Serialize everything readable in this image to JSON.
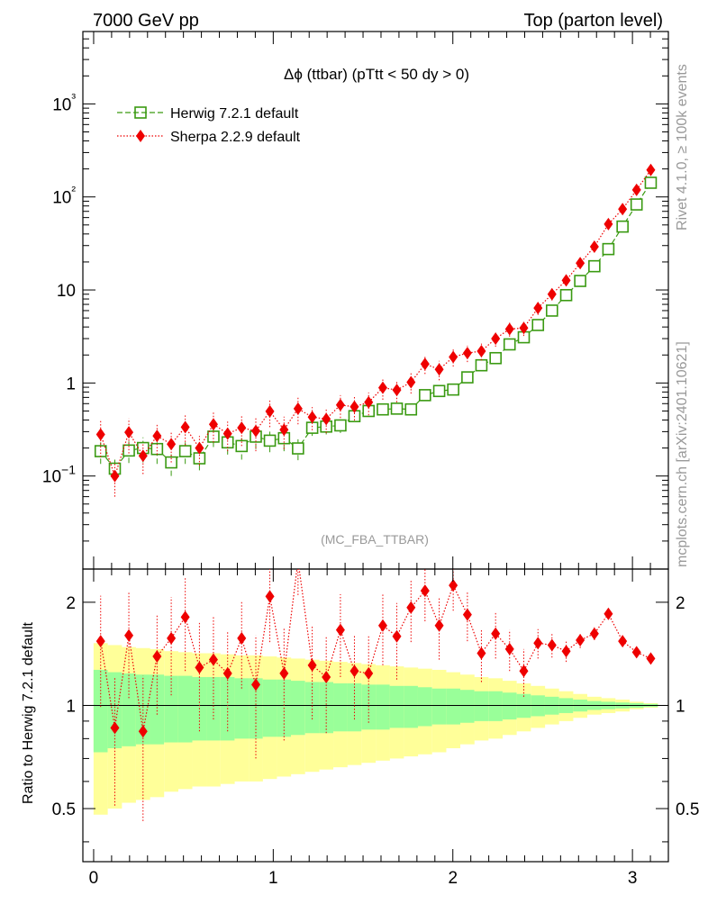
{
  "header": {
    "left": "7000 GeV pp",
    "right": "Top (parton level)"
  },
  "side": {
    "rivet": "Rivet 4.1.0, ≥ 100k events",
    "mcplots": "mcplots.cern.ch [arXiv:2401.10621]"
  },
  "colors": {
    "herwig": "#3a9a12",
    "sherpa": "#ee0000",
    "band_inner": "#99ff99",
    "band_outer": "#ffff99"
  },
  "chart_data": [
    {
      "type": "scatter",
      "title": "Δϕ (ttbar) (pTtt < 50 dy > 0)",
      "annotation": "(MC_FBA_TTBAR)",
      "xlabel": "",
      "ylabel": "",
      "xlim": [
        -0.06,
        3.2
      ],
      "ylim": [
        0.01,
        6000
      ],
      "yscale": "log",
      "yticklabels": [
        "10−1",
        "1",
        "10",
        "10²",
        "10³"
      ],
      "yticks": [
        0.1,
        1,
        10,
        100,
        1000
      ],
      "x": [
        0.039,
        0.118,
        0.196,
        0.275,
        0.353,
        0.432,
        0.51,
        0.589,
        0.667,
        0.746,
        0.824,
        0.903,
        0.981,
        1.06,
        1.138,
        1.217,
        1.295,
        1.374,
        1.452,
        1.531,
        1.61,
        1.688,
        1.767,
        1.845,
        1.924,
        2.002,
        2.081,
        2.159,
        2.238,
        2.316,
        2.395,
        2.474,
        2.552,
        2.631,
        2.709,
        2.788,
        2.866,
        2.945,
        3.023,
        3.102
      ],
      "series": [
        {
          "name": "Herwig 7.2.1 default",
          "marker": "open-square",
          "values": [
            0.185,
            0.12,
            0.188,
            0.2,
            0.195,
            0.14,
            0.185,
            0.155,
            0.265,
            0.23,
            0.21,
            0.265,
            0.24,
            0.255,
            0.198,
            0.33,
            0.34,
            0.35,
            0.44,
            0.5,
            0.52,
            0.53,
            0.52,
            0.74,
            0.82,
            0.85,
            1.15,
            1.55,
            1.85,
            2.6,
            3.1,
            4.2,
            6.0,
            8.8,
            12.5,
            18.0,
            27.5,
            48.0,
            83.0,
            142.0
          ],
          "errors": [
            0.05,
            0.03,
            0.05,
            0.06,
            0.06,
            0.04,
            0.05,
            0.04,
            0.06,
            0.06,
            0.06,
            0.07,
            0.06,
            0.07,
            0.05,
            0.06,
            0.06,
            0.06,
            0.06,
            0.06,
            0.06,
            0.06,
            0.06,
            0.07,
            0.07,
            0.07,
            0.08,
            0.09,
            0.1,
            0.15,
            0.17,
            0.2,
            0.25,
            0.35,
            0.5,
            0.7,
            1.0,
            1.5,
            2.5,
            4.0
          ]
        },
        {
          "name": "Sherpa 2.2.9 default",
          "marker": "filled-diamond",
          "values": [
            0.28,
            0.1,
            0.295,
            0.165,
            0.27,
            0.22,
            0.335,
            0.2,
            0.36,
            0.285,
            0.33,
            0.305,
            0.495,
            0.315,
            0.53,
            0.43,
            0.41,
            0.58,
            0.555,
            0.62,
            0.89,
            0.84,
            1.02,
            1.6,
            1.4,
            1.9,
            2.1,
            2.2,
            3.0,
            3.8,
            3.9,
            6.4,
            9.0,
            12.7,
            19.4,
            29.2,
            51.0,
            74.0,
            119.0,
            195.0
          ],
          "errors": [
            0.12,
            0.04,
            0.12,
            0.06,
            0.1,
            0.08,
            0.12,
            0.07,
            0.13,
            0.1,
            0.12,
            0.12,
            0.16,
            0.12,
            0.17,
            0.12,
            0.12,
            0.16,
            0.16,
            0.17,
            0.23,
            0.22,
            0.25,
            0.35,
            0.33,
            0.4,
            0.42,
            0.45,
            0.55,
            0.65,
            0.7,
            1.0,
            1.3,
            1.7,
            2.4,
            3.4,
            5.5,
            7.5,
            11.0,
            17.0
          ]
        }
      ]
    },
    {
      "type": "scatter",
      "title": "",
      "xlabel": "",
      "ylabel": "Ratio to Herwig 7.2.1 default",
      "xlim": [
        -0.06,
        3.2
      ],
      "ylim": [
        0.35,
        2.5
      ],
      "yscale": "log",
      "yticks": [
        0.5,
        1,
        2
      ],
      "yticklabels": [
        "0.5",
        "1",
        "2"
      ],
      "xticks": [
        0,
        1,
        2,
        3
      ],
      "xticklabels": [
        "0",
        "1",
        "2",
        "3"
      ],
      "reference": 1.0,
      "band_inner_rel": [
        0.27,
        0.25,
        0.24,
        0.23,
        0.23,
        0.22,
        0.22,
        0.21,
        0.21,
        0.21,
        0.2,
        0.2,
        0.19,
        0.19,
        0.18,
        0.17,
        0.17,
        0.16,
        0.16,
        0.15,
        0.15,
        0.14,
        0.14,
        0.13,
        0.12,
        0.12,
        0.11,
        0.1,
        0.1,
        0.09,
        0.08,
        0.07,
        0.06,
        0.05,
        0.04,
        0.03,
        0.025,
        0.02,
        0.015,
        0.01
      ],
      "band_outer_rel": [
        0.52,
        0.5,
        0.48,
        0.47,
        0.46,
        0.44,
        0.43,
        0.42,
        0.42,
        0.41,
        0.4,
        0.4,
        0.39,
        0.38,
        0.37,
        0.36,
        0.35,
        0.34,
        0.33,
        0.32,
        0.31,
        0.3,
        0.29,
        0.28,
        0.27,
        0.25,
        0.23,
        0.21,
        0.2,
        0.18,
        0.16,
        0.14,
        0.12,
        0.1,
        0.08,
        0.06,
        0.05,
        0.04,
        0.025,
        0.015
      ],
      "ratio_values": [
        1.54,
        0.86,
        1.6,
        0.84,
        1.39,
        1.57,
        1.81,
        1.29,
        1.36,
        1.24,
        1.57,
        1.15,
        2.08,
        1.24,
        2.65,
        1.31,
        1.21,
        1.66,
        1.26,
        1.24,
        1.71,
        1.59,
        1.93,
        2.16,
        1.71,
        2.24,
        1.84,
        1.42,
        1.62,
        1.46,
        1.26,
        1.52,
        1.5,
        1.44,
        1.55,
        1.62,
        1.85,
        1.54,
        1.43,
        1.37
      ],
      "ratio_errors": [
        0.55,
        0.35,
        0.55,
        0.38,
        0.45,
        0.5,
        0.55,
        0.45,
        0.45,
        0.4,
        0.45,
        0.45,
        0.55,
        0.45,
        0.55,
        0.4,
        0.38,
        0.45,
        0.35,
        0.35,
        0.4,
        0.4,
        0.4,
        0.4,
        0.35,
        0.35,
        0.3,
        0.25,
        0.25,
        0.2,
        0.2,
        0.15,
        0.12,
        0.1,
        0.08,
        0.07,
        0.06,
        0.05,
        0.04,
        0.03
      ]
    }
  ]
}
